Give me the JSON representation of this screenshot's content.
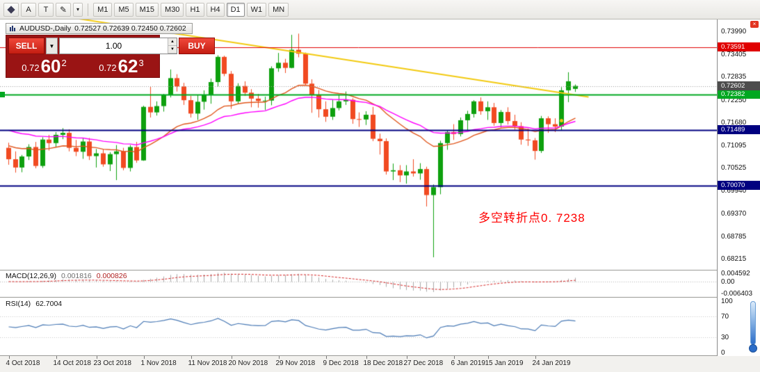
{
  "toolbar": {
    "tools": {
      "a_label": "A",
      "t_label": "T"
    },
    "timeframes": [
      "M1",
      "M5",
      "M15",
      "M30",
      "H1",
      "H4",
      "D1",
      "W1",
      "MN"
    ],
    "active_timeframe": "D1"
  },
  "chart_header": {
    "title": "AUDUSD-,Daily",
    "ohlc": "0.72527 0.72639 0.72450 0.72602"
  },
  "trade_panel": {
    "sell_label": "SELL",
    "buy_label": "BUY",
    "volume": "1.00",
    "sell_price": {
      "prefix": "0.72",
      "pips": "60",
      "point": "2"
    },
    "buy_price": {
      "prefix": "0.72",
      "pips": "62",
      "point": "3"
    },
    "panel_color": "#9a1414",
    "button_color": "#e23128"
  },
  "annotation": {
    "text": "多空转折点0. 7238",
    "color": "#ff0000"
  },
  "price_axis_labels": [
    "0.73990",
    "0.73405",
    "0.72835",
    "0.72250",
    "0.71680",
    "0.71095",
    "0.70525",
    "0.69940",
    "0.69370",
    "0.68785",
    "0.68215"
  ],
  "current_price": {
    "value": 0.72602,
    "label": "0.72602",
    "line_color": "#999999",
    "tag_color": "#4d4d4d"
  },
  "horizontal_lines": [
    {
      "price": 0.73591,
      "label": "0.73591",
      "color": "#e00000",
      "width": 1
    },
    {
      "price": 0.72382,
      "label": "0.72382",
      "color": "#00a821",
      "width": 2
    },
    {
      "price": 0.71489,
      "label": "0.71489",
      "color": "#000080",
      "width": 2
    },
    {
      "price": 0.7007,
      "label": "0.70070",
      "color": "#000080",
      "width": 2
    }
  ],
  "trendline": {
    "i1": 10,
    "p1": 0.74319,
    "i2": 86,
    "p2": 0.7232,
    "color": "#f2ca10",
    "width": 2
  },
  "marker": {
    "i": 82,
    "price": 0.7172,
    "color": "#f0c014"
  },
  "date_axis_labels": [
    {
      "text": "4 Oct 2018",
      "i": 0
    },
    {
      "text": "14 Oct 2018",
      "i": 7
    },
    {
      "text": "23 Oct 2018",
      "i": 13
    },
    {
      "text": "1 Nov 2018",
      "i": 20
    },
    {
      "text": "11 Nov 2018",
      "i": 27
    },
    {
      "text": "20 Nov 2018",
      "i": 33
    },
    {
      "text": "29 Nov 2018",
      "i": 40
    },
    {
      "text": "9 Dec 2018",
      "i": 47
    },
    {
      "text": "18 Dec 2018",
      "i": 53
    },
    {
      "text": "27 Dec 2018",
      "i": 59
    },
    {
      "text": "6 Jan 2019",
      "i": 66
    },
    {
      "text": "15 Jan 2019",
      "i": 71
    },
    {
      "text": "24 Jan 2019",
      "i": 78
    }
  ],
  "macd_panel": {
    "name": "MACD(12,26,9)",
    "value_main": "0.001816",
    "value_signal": "0.000826",
    "axis_labels": [
      "0.004592",
      "0.00",
      "-0.006403"
    ],
    "fast": 12,
    "slow": 26,
    "signal": 9,
    "histogram_color": "#a8a8a8",
    "signal_color": "#d42020"
  },
  "rsi_panel": {
    "name": "RSI(14)",
    "value": "62.7004",
    "period": 14,
    "axis_labels": [
      "100",
      "70",
      "30",
      "0"
    ],
    "levels": [
      70,
      30
    ],
    "line_color": "#4a7ab5"
  },
  "chart_data": {
    "type": "candlestick",
    "symbol": "AUDUSD",
    "period": "Daily",
    "up_color": "#0ea00e",
    "down_color": "#f14a21",
    "price_range_top": 0.7429,
    "price_range_bottom": 0.67932,
    "overlays": [
      {
        "name": "ma-fast",
        "period": 20,
        "seed": 0.7112,
        "color": "#e0561c"
      },
      {
        "name": "ma-slow",
        "period": 35,
        "seed": 0.7152,
        "color": "#ff00ff"
      }
    ],
    "candles": [
      [
        "2018-10-04",
        0.7103,
        0.7116,
        0.706,
        0.7074
      ],
      [
        "2018-10-05",
        0.7074,
        0.7094,
        0.704,
        0.7053
      ],
      [
        "2018-10-08",
        0.7053,
        0.7085,
        0.7041,
        0.7081
      ],
      [
        "2018-10-09",
        0.7081,
        0.7112,
        0.7072,
        0.7105
      ],
      [
        "2018-10-10",
        0.7105,
        0.7118,
        0.7051,
        0.7057
      ],
      [
        "2018-10-11",
        0.7057,
        0.713,
        0.7052,
        0.7124
      ],
      [
        "2018-10-12",
        0.7124,
        0.7136,
        0.7096,
        0.7115
      ],
      [
        "2018-10-15",
        0.7115,
        0.7143,
        0.7104,
        0.7136
      ],
      [
        "2018-10-16",
        0.7136,
        0.7153,
        0.7125,
        0.7141
      ],
      [
        "2018-10-17",
        0.7141,
        0.715,
        0.7094,
        0.7103
      ],
      [
        "2018-10-18",
        0.7103,
        0.7123,
        0.7082,
        0.7093
      ],
      [
        "2018-10-19",
        0.7093,
        0.7127,
        0.7075,
        0.7119
      ],
      [
        "2018-10-22",
        0.7119,
        0.7128,
        0.7072,
        0.7082
      ],
      [
        "2018-10-23",
        0.7082,
        0.71,
        0.7053,
        0.7089
      ],
      [
        "2018-10-24",
        0.7089,
        0.7099,
        0.7055,
        0.7061
      ],
      [
        "2018-10-25",
        0.7061,
        0.7092,
        0.7044,
        0.7087
      ],
      [
        "2018-10-26",
        0.7087,
        0.711,
        0.7021,
        0.7094
      ],
      [
        "2018-10-29",
        0.7094,
        0.7103,
        0.7046,
        0.7052
      ],
      [
        "2018-10-30",
        0.7052,
        0.711,
        0.7043,
        0.7105
      ],
      [
        "2018-10-31",
        0.7105,
        0.7118,
        0.7065,
        0.7071
      ],
      [
        "2018-11-01",
        0.7071,
        0.721,
        0.707,
        0.7207
      ],
      [
        "2018-11-02",
        0.7207,
        0.7259,
        0.718,
        0.7193
      ],
      [
        "2018-11-05",
        0.7193,
        0.7221,
        0.7185,
        0.7209
      ],
      [
        "2018-11-06",
        0.7209,
        0.724,
        0.7195,
        0.7237
      ],
      [
        "2018-11-07",
        0.7237,
        0.7302,
        0.7231,
        0.728
      ],
      [
        "2018-11-08",
        0.728,
        0.729,
        0.7246,
        0.7259
      ],
      [
        "2018-11-09",
        0.7259,
        0.7268,
        0.7212,
        0.7224
      ],
      [
        "2018-11-12",
        0.7224,
        0.7235,
        0.718,
        0.719
      ],
      [
        "2018-11-13",
        0.719,
        0.7237,
        0.7174,
        0.722
      ],
      [
        "2018-11-14",
        0.722,
        0.7249,
        0.72,
        0.7238
      ],
      [
        "2018-11-15",
        0.7238,
        0.7279,
        0.7215,
        0.727
      ],
      [
        "2018-11-16",
        0.727,
        0.7338,
        0.7259,
        0.7334
      ],
      [
        "2018-11-19",
        0.7334,
        0.7337,
        0.7285,
        0.7291
      ],
      [
        "2018-11-20",
        0.7291,
        0.7298,
        0.7202,
        0.7221
      ],
      [
        "2018-11-21",
        0.7221,
        0.7267,
        0.7215,
        0.726
      ],
      [
        "2018-11-22",
        0.726,
        0.7272,
        0.7235,
        0.7243
      ],
      [
        "2018-11-23",
        0.7243,
        0.7252,
        0.7206,
        0.7228
      ],
      [
        "2018-11-26",
        0.7228,
        0.724,
        0.7205,
        0.7222
      ],
      [
        "2018-11-27",
        0.7222,
        0.7233,
        0.7199,
        0.7223
      ],
      [
        "2018-11-28",
        0.7223,
        0.731,
        0.7211,
        0.7305
      ],
      [
        "2018-11-29",
        0.7305,
        0.7344,
        0.7296,
        0.7319
      ],
      [
        "2018-11-30",
        0.7319,
        0.7329,
        0.7293,
        0.7306
      ],
      [
        "2018-12-03",
        0.7306,
        0.739,
        0.7305,
        0.7352
      ],
      [
        "2018-12-04",
        0.7352,
        0.7393,
        0.7333,
        0.7342
      ],
      [
        "2018-12-05",
        0.7342,
        0.7345,
        0.7262,
        0.7266
      ],
      [
        "2018-12-06",
        0.7266,
        0.7277,
        0.7192,
        0.7237
      ],
      [
        "2018-12-07",
        0.7237,
        0.725,
        0.718,
        0.7201
      ],
      [
        "2018-12-10",
        0.7201,
        0.7221,
        0.7169,
        0.7182
      ],
      [
        "2018-12-11",
        0.7182,
        0.7225,
        0.7174,
        0.7204
      ],
      [
        "2018-12-12",
        0.7204,
        0.7238,
        0.7198,
        0.7221
      ],
      [
        "2018-12-13",
        0.7221,
        0.7246,
        0.7212,
        0.7225
      ],
      [
        "2018-12-14",
        0.7225,
        0.7229,
        0.7164,
        0.7176
      ],
      [
        "2018-12-17",
        0.7176,
        0.7193,
        0.7156,
        0.7175
      ],
      [
        "2018-12-18",
        0.7175,
        0.7196,
        0.7161,
        0.7187
      ],
      [
        "2018-12-19",
        0.7187,
        0.7207,
        0.712,
        0.7126
      ],
      [
        "2018-12-20",
        0.7126,
        0.7139,
        0.7086,
        0.712
      ],
      [
        "2018-12-21",
        0.712,
        0.7127,
        0.7035,
        0.7043
      ],
      [
        "2018-12-24",
        0.7043,
        0.7063,
        0.7021,
        0.7046
      ],
      [
        "2018-12-26",
        0.7046,
        0.7059,
        0.7016,
        0.7033
      ],
      [
        "2018-12-27",
        0.7033,
        0.7059,
        0.7012,
        0.7043
      ],
      [
        "2018-12-28",
        0.7043,
        0.7074,
        0.703,
        0.7038
      ],
      [
        "2018-12-31",
        0.7038,
        0.7064,
        0.7022,
        0.7049
      ],
      [
        "2019-01-02",
        0.7049,
        0.7055,
        0.6954,
        0.6983
      ],
      [
        "2019-01-03",
        0.6983,
        0.701,
        0.6825,
        0.7003
      ],
      [
        "2019-01-04",
        0.7003,
        0.7121,
        0.6985,
        0.7115
      ],
      [
        "2019-01-07",
        0.7115,
        0.7148,
        0.7098,
        0.7143
      ],
      [
        "2019-01-08",
        0.7143,
        0.7163,
        0.7123,
        0.7138
      ],
      [
        "2019-01-09",
        0.7138,
        0.718,
        0.7132,
        0.7173
      ],
      [
        "2019-01-10",
        0.7173,
        0.7197,
        0.7147,
        0.7189
      ],
      [
        "2019-01-11",
        0.7189,
        0.7224,
        0.718,
        0.7221
      ],
      [
        "2019-01-14",
        0.7221,
        0.7231,
        0.7187,
        0.7196
      ],
      [
        "2019-01-15",
        0.7196,
        0.7221,
        0.7174,
        0.7206
      ],
      [
        "2019-01-16",
        0.7206,
        0.7217,
        0.7159,
        0.7166
      ],
      [
        "2019-01-17",
        0.7166,
        0.7199,
        0.7155,
        0.7194
      ],
      [
        "2019-01-18",
        0.7194,
        0.7206,
        0.7162,
        0.7171
      ],
      [
        "2019-01-21",
        0.7171,
        0.7187,
        0.7149,
        0.7158
      ],
      [
        "2019-01-22",
        0.7158,
        0.7168,
        0.7111,
        0.7124
      ],
      [
        "2019-01-23",
        0.7124,
        0.7152,
        0.7108,
        0.7122
      ],
      [
        "2019-01-24",
        0.7122,
        0.7128,
        0.7073,
        0.7095
      ],
      [
        "2019-01-25",
        0.7095,
        0.7184,
        0.709,
        0.7178
      ],
      [
        "2019-01-28",
        0.7178,
        0.7183,
        0.7141,
        0.7163
      ],
      [
        "2019-01-29",
        0.7163,
        0.7178,
        0.7143,
        0.7157
      ],
      [
        "2019-01-30",
        0.7157,
        0.7257,
        0.7147,
        0.7249
      ],
      [
        "2019-01-31",
        0.7249,
        0.7295,
        0.7219,
        0.7272
      ],
      [
        "2019-02-01",
        0.72527,
        0.72639,
        0.7245,
        0.72602
      ]
    ]
  }
}
